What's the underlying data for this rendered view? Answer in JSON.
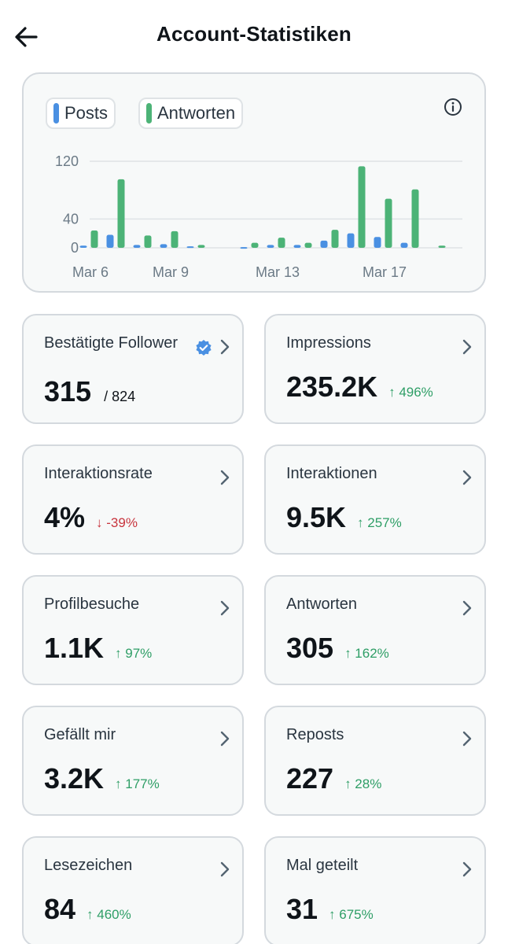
{
  "header": {
    "title": "Account-Statistiken"
  },
  "colors": {
    "posts": "#4a90e2",
    "replies": "#4cb377",
    "positive": "#2e9e66",
    "negative": "#c8353e"
  },
  "chart": {
    "legend": {
      "posts": "Posts",
      "replies": "Antworten"
    }
  },
  "chart_data": {
    "type": "bar",
    "title": "",
    "xlabel": "",
    "ylabel": "",
    "ylim": [
      0,
      120
    ],
    "yticks": [
      0,
      40,
      120
    ],
    "x_tick_labels": [
      {
        "day": 0,
        "label": "Mar 6"
      },
      {
        "day": 3,
        "label": "Mar 9"
      },
      {
        "day": 7,
        "label": "Mar 13"
      },
      {
        "day": 11,
        "label": "Mar 17"
      }
    ],
    "categories": [
      "Mar 6",
      "Mar 7",
      "Mar 8",
      "Mar 9",
      "Mar 10",
      "Mar 11",
      "Mar 12",
      "Mar 13",
      "Mar 14",
      "Mar 15",
      "Mar 16",
      "Mar 17",
      "Mar 18",
      "Mar 19"
    ],
    "series": [
      {
        "name": "Posts",
        "values": [
          3,
          18,
          4,
          5,
          2,
          0,
          1,
          4,
          4,
          10,
          20,
          15,
          7,
          0
        ]
      },
      {
        "name": "Antworten",
        "values": [
          24,
          95,
          17,
          23,
          4,
          0,
          7,
          14,
          7,
          25,
          113,
          68,
          81,
          3
        ]
      }
    ]
  },
  "stats": [
    {
      "label": "Bestätigte Follower",
      "value": "315",
      "sub": "/ 824",
      "verified": true
    },
    {
      "label": "Impressions",
      "value": "235.2K",
      "change": "↑ 496%",
      "direction": "up"
    },
    {
      "label": "Interaktionsrate",
      "value": "4%",
      "change": "↓ -39%",
      "direction": "down"
    },
    {
      "label": "Interaktionen",
      "value": "9.5K",
      "change": "↑ 257%",
      "direction": "up"
    },
    {
      "label": "Profilbesuche",
      "value": "1.1K",
      "change": "↑ 97%",
      "direction": "up"
    },
    {
      "label": "Antworten",
      "value": "305",
      "change": "↑ 162%",
      "direction": "up"
    },
    {
      "label": "Gefällt mir",
      "value": "3.2K",
      "change": "↑ 177%",
      "direction": "up"
    },
    {
      "label": "Reposts",
      "value": "227",
      "change": "↑ 28%",
      "direction": "up"
    },
    {
      "label": "Lesezeichen",
      "value": "84",
      "change": "↑ 460%",
      "direction": "up"
    },
    {
      "label": "Mal geteilt",
      "value": "31",
      "change": "↑ 675%",
      "direction": "up"
    }
  ]
}
